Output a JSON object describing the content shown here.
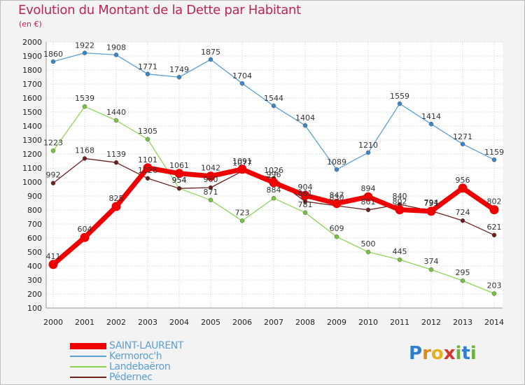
{
  "title": "Evolution du Montant de la Dette par Habitant",
  "unit": "(en €)",
  "logo": {
    "text": "Proxiti",
    "letters": [
      {
        "ch": "P",
        "color": "#2f7fd0"
      },
      {
        "ch": "r",
        "color": "#e08a1e"
      },
      {
        "ch": "o",
        "color": "#e0b21e"
      },
      {
        "ch": "x",
        "color": "#d6342e"
      },
      {
        "ch": "i",
        "color": "#6cb23a"
      },
      {
        "ch": "t",
        "color": "#2f7fd0"
      },
      {
        "ch": "i",
        "color": "#6cb23a"
      }
    ]
  },
  "chart_data": {
    "type": "line",
    "x": [
      2000,
      2001,
      2002,
      2003,
      2004,
      2005,
      2006,
      2007,
      2008,
      2009,
      2010,
      2011,
      2012,
      2013,
      2014
    ],
    "ylim": [
      100,
      2000
    ],
    "yticks": [
      100,
      200,
      300,
      400,
      500,
      600,
      700,
      800,
      900,
      1000,
      1100,
      1200,
      1300,
      1400,
      1500,
      1600,
      1700,
      1800,
      1900,
      2000
    ],
    "grid": true,
    "legend_position": "bottom-left",
    "series": [
      {
        "name": "Kermoroc'h",
        "color": "#5c9fd2",
        "marker": "#3a86c6",
        "values": [
          1860,
          1922,
          1908,
          1771,
          1749,
          1875,
          1704,
          1544,
          1404,
          1089,
          1210,
          1559,
          1414,
          1271,
          1159
        ]
      },
      {
        "name": "Landebaëron",
        "color": "#8fd45a",
        "marker": "#78c340",
        "values": [
          1223,
          1539,
          1440,
          1305,
          954,
          871,
          723,
          884,
          781,
          609,
          500,
          445,
          374,
          295,
          203
        ]
      },
      {
        "name": "Pédernec",
        "color": "#6b1f1f",
        "marker": "#6b1f1f",
        "values": [
          992,
          1168,
          1139,
          1026,
          954,
          960,
          1077,
          1026,
          861,
          830,
          801,
          840,
          794,
          724,
          621
        ]
      },
      {
        "name": "SAINT-LAURENT",
        "color": "#ee0000",
        "marker": "#ee0000",
        "values": [
          411,
          604,
          825,
          1101,
          1061,
          1042,
          1091,
          996,
          904,
          847,
          894,
          802,
          791,
          956,
          802
        ]
      }
    ]
  },
  "legend": [
    {
      "name": "SAINT-LAURENT",
      "color": "#ee0000"
    },
    {
      "name": "Kermoroc'h",
      "color": "#5c9fd2"
    },
    {
      "name": "Landebaëron",
      "color": "#8fd45a"
    },
    {
      "name": "Pédernec",
      "color": "#6b1f1f"
    }
  ]
}
